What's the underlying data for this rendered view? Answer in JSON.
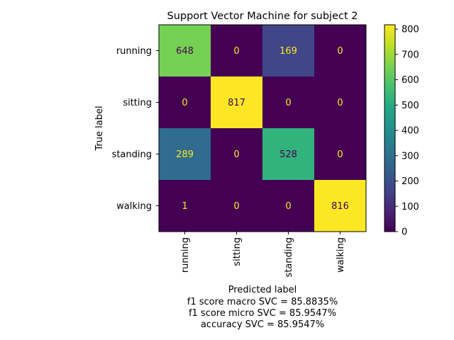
{
  "chart_data": {
    "type": "heatmap",
    "title": "Support Vector Machine for subject 2",
    "ylabel": "True label",
    "xlabel": "Predicted label",
    "xlabel_lines": [
      "f1 score macro SVC = 85.8835%",
      "f1 score micro SVC = 85.9547%",
      "accuracy SVC = 85.9547%"
    ],
    "row_labels": [
      "running",
      "sitting",
      "standing",
      "walking"
    ],
    "col_labels": [
      "running",
      "sitting",
      "standing",
      "walking"
    ],
    "values": [
      [
        648,
        0,
        169,
        0
      ],
      [
        0,
        817,
        0,
        0
      ],
      [
        289,
        0,
        528,
        0
      ],
      [
        1,
        0,
        0,
        816
      ]
    ],
    "colormap": "viridis",
    "vmin": 0,
    "vmax": 817,
    "colorbar_ticks": [
      0,
      100,
      200,
      300,
      400,
      500,
      600,
      700,
      800
    ],
    "text_color_dark": "#440154",
    "text_color_light": "#fde725"
  }
}
